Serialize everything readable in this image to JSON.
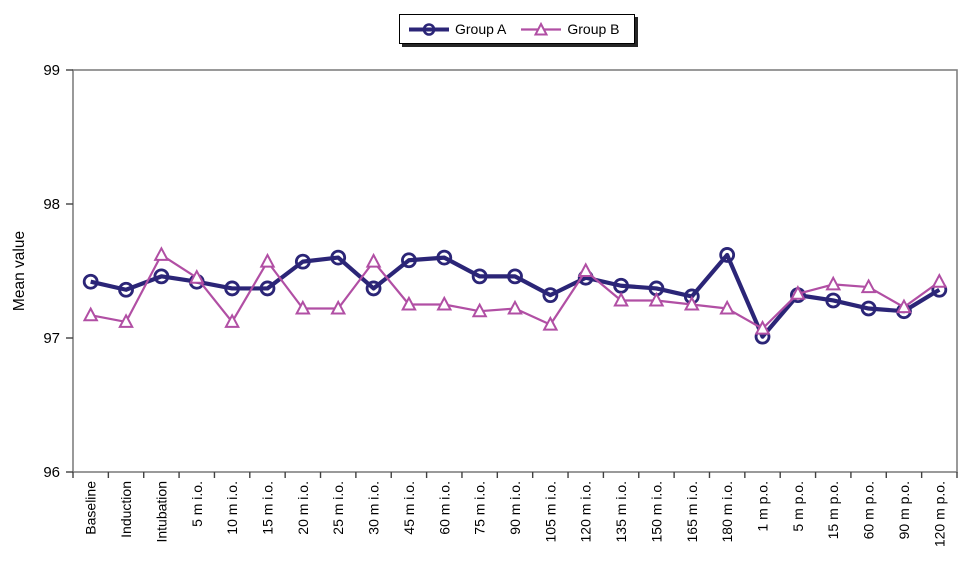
{
  "chart_data": {
    "type": "line",
    "title": "",
    "xlabel": "",
    "ylabel": "Mean value",
    "ylim": [
      96,
      99
    ],
    "yticks": [
      96,
      97,
      98,
      99
    ],
    "grid": false,
    "legend_position": "top-center",
    "axis_color": "#808080",
    "tick_color": "#404040",
    "text_color": "#000000",
    "categories": [
      "Baseline",
      "Induction",
      "Intubation",
      "5 m i.o.",
      "10 m i.o.",
      "15 m i.o.",
      "20 m i.o.",
      "25 m i.o.",
      "30 m i.o.",
      "45 m i.o.",
      "60 m i.o.",
      "75 m i.o.",
      "90 m i.o.",
      "105 m i.o.",
      "120 m i.o.",
      "135 m i.o.",
      "150 m i.o.",
      "165 m i.o.",
      "180 m i.o.",
      "1 m p.o.",
      "5 m p.o.",
      "15 m p.o.",
      "60 m p.o.",
      "90 m p.o.",
      "120 m p.o."
    ],
    "series": [
      {
        "name": "Group A",
        "color": "#2B2577",
        "marker": "circle",
        "line_width": 4.2,
        "values": [
          97.42,
          97.36,
          97.46,
          97.42,
          97.37,
          97.37,
          97.57,
          97.6,
          97.37,
          97.58,
          97.6,
          97.46,
          97.46,
          97.32,
          97.45,
          97.39,
          97.37,
          97.31,
          97.62,
          97.01,
          97.32,
          97.28,
          97.22,
          97.2,
          97.36
        ]
      },
      {
        "name": "Group B",
        "color": "#B14FA4",
        "marker": "triangle-up",
        "line_width": 2.2,
        "values": [
          97.17,
          97.12,
          97.62,
          97.45,
          97.12,
          97.57,
          97.22,
          97.22,
          97.57,
          97.25,
          97.25,
          97.2,
          97.22,
          97.1,
          97.5,
          97.28,
          97.28,
          97.25,
          97.22,
          97.07,
          97.33,
          97.4,
          97.38,
          97.23,
          97.42
        ]
      }
    ]
  }
}
